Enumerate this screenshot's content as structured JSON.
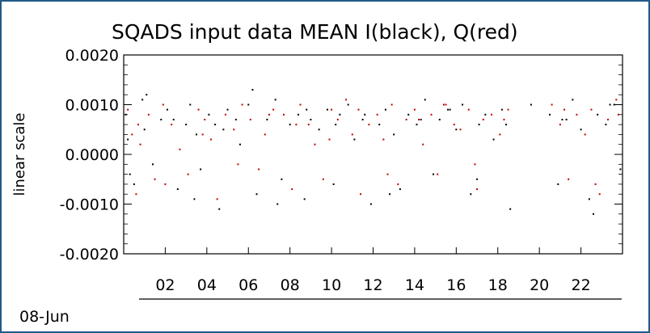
{
  "chart_data": {
    "type": "scatter",
    "title": "SQADS input data MEAN I(black), Q(red)",
    "xlabel": "",
    "ylabel": "linear scale",
    "date_label": "08-Jun",
    "x_unit": "hour",
    "xlim": [
      0,
      24
    ],
    "ylim": [
      -0.002,
      0.002
    ],
    "x_ticks": [
      2,
      4,
      6,
      8,
      10,
      12,
      14,
      16,
      18,
      20,
      22
    ],
    "x_tick_labels": [
      "02",
      "04",
      "06",
      "08",
      "10",
      "12",
      "14",
      "16",
      "18",
      "20",
      "22"
    ],
    "y_ticks": [
      -0.002,
      -0.001,
      0.0,
      0.001,
      0.002
    ],
    "y_tick_labels": [
      "-0.0020",
      "-0.0010",
      "0.0000",
      "0.0010",
      "0.0020"
    ],
    "grid": false,
    "legend": "none",
    "series": [
      {
        "name": "I",
        "color": "#000000",
        "x": [
          0.1,
          0.2,
          0.5,
          0.9,
          1.0,
          1.4,
          1.8,
          2.1,
          2.6,
          3.0,
          3.2,
          3.5,
          3.7,
          4.1,
          4.4,
          4.6,
          5.0,
          5.4,
          5.6,
          6.0,
          6.4,
          6.9,
          7.3,
          7.6,
          8.0,
          8.4,
          8.7,
          9.0,
          9.4,
          9.8,
          10.1,
          10.4,
          10.8,
          11.1,
          11.5,
          11.9,
          12.3,
          12.6,
          13.0,
          13.3,
          13.7,
          14.1,
          14.5,
          14.9,
          15.2,
          15.6,
          16.0,
          16.3,
          16.7,
          17.1,
          17.4,
          17.8,
          18.2,
          18.6,
          19.6,
          20.5,
          20.9,
          21.3,
          21.6,
          22.0,
          22.4,
          22.8,
          23.2,
          23.6,
          23.9,
          0.3,
          1.1,
          2.4,
          3.4,
          4.8,
          6.2,
          7.4,
          8.8,
          10.2,
          11.6,
          12.8,
          14.3,
          15.7,
          17.0,
          18.4,
          21.1,
          22.6,
          23.4
        ],
        "y": [
          0.0008,
          0.0003,
          -0.0006,
          0.0011,
          0.0005,
          -0.0002,
          0.0007,
          0.0009,
          -0.0007,
          0.0006,
          0.001,
          0.0004,
          -0.0003,
          0.0008,
          0.0006,
          -0.0011,
          0.0009,
          0.0007,
          0.0002,
          0.001,
          -0.0008,
          0.0007,
          0.0011,
          -0.0005,
          0.0006,
          0.0008,
          -0.0009,
          0.0007,
          0.0005,
          0.0009,
          -0.0006,
          0.0008,
          0.001,
          0.0003,
          0.0007,
          -0.001,
          0.0006,
          0.0009,
          0.0004,
          -0.0007,
          0.0008,
          0.0006,
          0.0011,
          -0.0004,
          0.0007,
          0.0009,
          0.0005,
          0.001,
          -0.0008,
          0.0006,
          0.0008,
          0.0003,
          0.0009,
          -0.0011,
          0.001,
          0.0008,
          -0.0006,
          0.0007,
          0.0011,
          0.0005,
          -0.0009,
          0.0008,
          0.0006,
          0.001,
          -0.0003,
          -0.0004,
          0.0012,
          0.0007,
          -0.0009,
          0.0005,
          0.0013,
          -0.001,
          0.0009,
          0.0006,
          0.0008,
          -0.0008,
          0.0007,
          0.0009,
          -0.0005,
          0.0006,
          0.0007,
          -0.0012,
          0.001
        ]
      },
      {
        "name": "Q",
        "color": "#c00000",
        "x": [
          0.2,
          0.4,
          0.6,
          0.8,
          1.2,
          1.5,
          1.9,
          2.3,
          2.7,
          3.1,
          3.6,
          3.9,
          4.2,
          4.5,
          4.9,
          5.3,
          5.7,
          6.1,
          6.5,
          6.8,
          7.2,
          7.7,
          8.1,
          8.5,
          8.9,
          9.2,
          9.6,
          10.0,
          10.3,
          10.7,
          11.0,
          11.4,
          11.8,
          12.2,
          12.5,
          12.9,
          13.2,
          13.6,
          14.0,
          14.4,
          14.8,
          15.1,
          15.5,
          15.9,
          16.2,
          16.6,
          17.0,
          17.3,
          17.7,
          18.1,
          18.5,
          20.6,
          21.0,
          21.4,
          21.8,
          22.2,
          22.5,
          22.9,
          23.3,
          23.7,
          0.7,
          2.0,
          3.8,
          5.5,
          7.0,
          8.3,
          9.9,
          11.3,
          12.7,
          14.2,
          15.4,
          16.9,
          18.3,
          21.2,
          22.7,
          23.8
        ],
        "y": [
          0.0009,
          0.0004,
          -0.0008,
          0.0002,
          0.0008,
          -0.0005,
          0.001,
          0.0006,
          0.0001,
          -0.0004,
          0.0009,
          0.0007,
          0.0003,
          -0.0009,
          0.0008,
          0.0005,
          0.001,
          0.0007,
          -0.0003,
          0.0004,
          0.0009,
          0.0008,
          -0.0007,
          0.001,
          0.0006,
          0.0002,
          -0.0005,
          0.0009,
          0.0007,
          0.0011,
          0.0004,
          -0.0008,
          0.0006,
          0.0008,
          0.0003,
          0.001,
          -0.0006,
          0.0007,
          0.0009,
          0.0002,
          0.0008,
          -0.0004,
          0.001,
          0.0006,
          0.0005,
          0.0009,
          -0.0007,
          0.0007,
          0.0008,
          0.0004,
          0.0009,
          0.001,
          0.0006,
          -0.0005,
          0.0008,
          0.0004,
          0.0009,
          -0.0008,
          0.0007,
          0.0011,
          0.0006,
          -0.0006,
          0.0004,
          -0.0002,
          0.0008,
          0.0006,
          0.0003,
          0.0009,
          -0.0004,
          0.0007,
          0.001,
          -0.0002,
          0.0007,
          0.0009,
          -0.0006,
          0.0008
        ]
      }
    ]
  }
}
